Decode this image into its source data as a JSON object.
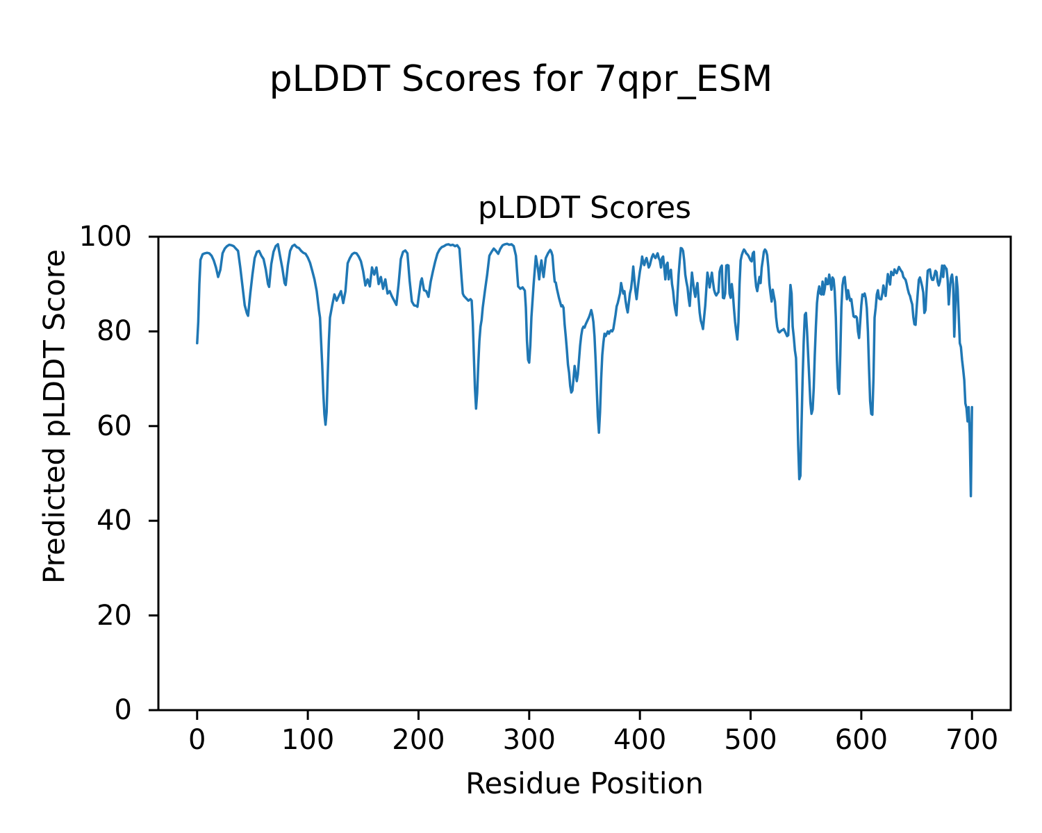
{
  "figure": {
    "suptitle": "pLDDT Scores for 7qpr_ESM"
  },
  "chart_data": {
    "type": "line",
    "title": "pLDDT Scores",
    "xlabel": "Residue Position",
    "ylabel": "Predicted pLDDT Score",
    "xlim": [
      -35,
      735
    ],
    "ylim": [
      0,
      100
    ],
    "xticks": [
      0,
      100,
      200,
      300,
      400,
      500,
      600,
      700
    ],
    "yticks": [
      0,
      20,
      40,
      60,
      80,
      100
    ],
    "grid": false,
    "legend": "none",
    "line_color": "#1f77b4",
    "line_width": 3.5,
    "axis_color": "#000000",
    "series": [
      {
        "name": "pLDDT",
        "x": [
          0,
          1,
          2,
          3,
          5,
          7,
          9,
          11,
          13,
          15,
          17,
          19,
          21,
          23,
          25,
          27,
          29,
          31,
          33,
          35,
          37,
          39,
          41,
          43,
          45,
          46,
          48,
          50,
          52,
          54,
          56,
          58,
          60,
          62,
          64,
          65,
          67,
          69,
          71,
          73,
          75,
          77,
          79,
          80,
          82,
          84,
          86,
          88,
          90,
          92,
          94,
          96,
          98,
          100,
          102,
          104,
          106,
          108,
          110,
          111,
          112,
          113,
          114,
          115,
          116,
          117,
          118,
          119,
          120,
          122,
          124,
          126,
          128,
          130,
          132,
          134,
          136,
          138,
          140,
          142,
          144,
          146,
          148,
          150,
          152,
          154,
          156,
          158,
          160,
          162,
          164,
          166,
          168,
          170,
          172,
          174,
          176,
          178,
          180,
          182,
          184,
          186,
          188,
          190,
          192,
          194,
          196,
          198,
          199,
          200,
          202,
          203,
          205,
          207,
          209,
          211,
          213,
          215,
          217,
          219,
          221,
          223,
          225,
          227,
          229,
          231,
          233,
          235,
          237,
          239,
          240,
          241,
          243,
          245,
          247,
          248,
          249,
          250,
          251,
          252,
          253,
          254,
          255,
          256,
          257,
          258,
          260,
          262,
          264,
          266,
          268,
          270,
          272,
          274,
          276,
          278,
          280,
          282,
          284,
          286,
          288,
          290,
          292,
          294,
          296,
          297,
          298,
          299,
          300,
          301,
          302,
          304,
          306,
          308,
          309,
          310,
          311,
          312,
          313,
          314,
          315,
          317,
          319,
          320,
          321,
          322,
          323,
          324,
          325,
          327,
          329,
          330,
          331,
          332,
          333,
          334,
          335,
          336,
          337,
          338,
          339,
          340,
          341,
          342,
          343,
          344,
          345,
          346,
          347,
          348,
          349,
          350,
          351,
          352,
          354,
          355,
          356,
          357,
          358,
          359,
          360,
          361,
          362,
          363,
          364,
          365,
          366,
          367,
          368,
          369,
          370,
          371,
          372,
          373,
          374,
          375,
          376,
          377,
          378,
          379,
          380,
          381,
          382,
          383,
          384,
          385,
          386,
          387,
          388,
          389,
          390,
          391,
          392,
          393,
          394,
          395,
          396,
          397,
          398,
          399,
          400,
          401,
          402,
          403,
          404,
          405,
          406,
          407,
          408,
          409,
          410,
          411,
          412,
          413,
          414,
          415,
          416,
          417,
          418,
          419,
          420,
          421,
          422,
          423,
          424,
          425,
          426,
          427,
          428,
          429,
          430,
          431,
          432,
          433,
          434,
          435,
          436,
          437,
          438,
          439,
          440,
          441,
          442,
          443,
          444,
          445,
          446,
          447,
          448,
          449,
          450,
          451,
          452,
          453,
          454,
          455,
          456,
          457,
          458,
          459,
          460,
          461,
          462,
          463,
          464,
          465,
          466,
          467,
          468,
          469,
          470,
          471,
          472,
          473,
          474,
          475,
          476,
          477,
          478,
          479,
          480,
          481,
          482,
          483,
          484,
          485,
          486,
          487,
          488,
          489,
          490,
          491,
          492,
          493,
          494,
          495,
          496,
          497,
          498,
          499,
          500,
          501,
          502,
          503,
          504,
          505,
          506,
          507,
          508,
          509,
          510,
          511,
          512,
          513,
          514,
          515,
          516,
          517,
          518,
          519,
          520,
          521,
          522,
          523,
          524,
          525,
          526,
          527,
          528,
          529,
          530,
          531,
          532,
          533,
          534,
          535,
          536,
          537,
          538,
          539,
          540,
          541,
          542,
          543,
          544,
          545,
          546,
          547,
          548,
          549,
          550,
          551,
          552,
          553,
          554,
          555,
          556,
          557,
          558,
          559,
          560,
          561,
          562,
          563,
          564,
          565,
          566,
          567,
          568,
          569,
          570,
          571,
          572,
          573,
          574,
          575,
          576,
          577,
          578,
          579,
          580,
          581,
          582,
          583,
          584,
          585,
          586,
          587,
          588,
          589,
          590,
          591,
          592,
          593,
          594,
          595,
          596,
          597,
          598,
          599,
          600,
          601,
          602,
          603,
          604,
          605,
          606,
          607,
          608,
          609,
          610,
          611,
          612,
          613,
          614,
          615,
          616,
          617,
          618,
          619,
          620,
          621,
          622,
          623,
          624,
          625,
          626,
          627,
          628,
          629,
          630,
          631,
          632,
          633,
          634,
          635,
          636,
          637,
          638,
          639,
          640,
          641,
          642,
          643,
          644,
          645,
          646,
          647,
          648,
          649,
          650,
          651,
          652,
          653,
          654,
          655,
          656,
          657,
          658,
          659,
          660,
          661,
          662,
          663,
          664,
          665,
          666,
          667,
          668,
          669,
          670,
          671,
          672,
          673,
          674,
          675,
          676,
          677,
          678,
          679,
          680,
          681,
          682,
          683,
          684,
          685,
          686,
          687,
          688,
          689,
          690,
          691,
          692,
          693,
          694,
          695,
          696,
          697,
          698,
          699,
          700
        ],
        "y": [
          77.5,
          82,
          90,
          95.1,
          96.3,
          96.5,
          96.6,
          96.5,
          96,
          95,
          93.5,
          91.5,
          93,
          96.5,
          97.5,
          98,
          98.3,
          98.2,
          98,
          97.5,
          97,
          93.5,
          89.5,
          85.5,
          83.8,
          83.3,
          88,
          92,
          95.5,
          96.8,
          97,
          96,
          95.3,
          93.1,
          90,
          89.4,
          94.2,
          96.8,
          98,
          98.4,
          95.8,
          93.3,
          90.2,
          89.8,
          94,
          97,
          98,
          98.3,
          97.8,
          97.6,
          97,
          96.6,
          96.4,
          95.6,
          94.5,
          92.8,
          91,
          88.5,
          84.5,
          82.9,
          78,
          73,
          67,
          62.5,
          60.3,
          63,
          71,
          78,
          82.9,
          85.5,
          87.8,
          86.5,
          87.5,
          88.5,
          86,
          88.5,
          94.4,
          95.5,
          96.3,
          96.6,
          96.5,
          95.8,
          94.8,
          92.7,
          89.7,
          91,
          89.5,
          93.5,
          92,
          93.5,
          90,
          91.5,
          89,
          91,
          88,
          88.5,
          87.4,
          86.5,
          85.6,
          90,
          95.3,
          96.8,
          97.1,
          96.5,
          90.7,
          86.3,
          85.5,
          85.4,
          85.2,
          87,
          90.5,
          91.2,
          88.7,
          88.5,
          87.3,
          90.5,
          92.7,
          94.7,
          96.4,
          97.3,
          97.8,
          98,
          98.3,
          98.4,
          98.2,
          98.3,
          98,
          98.2,
          97.5,
          91,
          88,
          87.5,
          87,
          86.5,
          86.8,
          86.5,
          82,
          75,
          68,
          63.7,
          67,
          73,
          78,
          81,
          82.4,
          85,
          88.6,
          92,
          96,
          96.8,
          97.5,
          97,
          96.4,
          97.5,
          98.2,
          98.4,
          98.5,
          98.3,
          98.4,
          98,
          96,
          89.5,
          89,
          89.3,
          88.6,
          85,
          78,
          74,
          73.4,
          77,
          83,
          90,
          95.9,
          93,
          91,
          93.5,
          95,
          93,
          91.5,
          93.5,
          95.5,
          96.5,
          97.2,
          96.8,
          96,
          93,
          90.5,
          90.3,
          89,
          87,
          85.3,
          85.5,
          85,
          81.5,
          79,
          76.2,
          73,
          71.3,
          68.5,
          67.1,
          67.5,
          70,
          72.7,
          71,
          69.5,
          71,
          74,
          77,
          79.1,
          80.5,
          81,
          80.8,
          81.5,
          82,
          83,
          83.7,
          84.5,
          83.5,
          82,
          79,
          74,
          68,
          62,
          58.6,
          63,
          70,
          75,
          77.6,
          79.5,
          79,
          79.5,
          80,
          79.5,
          80,
          80.2,
          80,
          80.5,
          82,
          83.5,
          85.3,
          86,
          87,
          88,
          90.2,
          89,
          88,
          88.5,
          86.5,
          85,
          84,
          86,
          88,
          89,
          91,
          93.7,
          91,
          88.5,
          86.8,
          89,
          91,
          92.7,
          94,
          95.8,
          94.5,
          94,
          95,
          95.5,
          94.5,
          93.5,
          94,
          95,
          95.8,
          96.3,
          95.8,
          95.5,
          96,
          96.5,
          95.5,
          95,
          93.5,
          95.5,
          95.8,
          93.5,
          91,
          94,
          94.5,
          91,
          92.5,
          93,
          90,
          88.5,
          86,
          84.5,
          83.4,
          88,
          92,
          95,
          97.6,
          97.5,
          97,
          95,
          92,
          90.5,
          89.3,
          87,
          85.4,
          89,
          92.4,
          90.5,
          88.5,
          87.3,
          89,
          90.2,
          87,
          84,
          82.3,
          81.5,
          80.5,
          83,
          85.4,
          89,
          92.4,
          91,
          89.3,
          91,
          92.4,
          90.5,
          88.8,
          88,
          87.6,
          88,
          88.3,
          92.6,
          93.5,
          93.9,
          87.1,
          87,
          88,
          93.9,
          94,
          93.9,
          88,
          87.1,
          90,
          88,
          84.8,
          82,
          80,
          78.3,
          82,
          90,
          95,
          96.1,
          96.8,
          97.3,
          97,
          96.5,
          96.3,
          96,
          95.5,
          95,
          94.8,
          96.5,
          96.8,
          92,
          89.5,
          88.5,
          90,
          91.5,
          90.2,
          93.5,
          95.1,
          96.8,
          97.3,
          97,
          96.1,
          93.6,
          90,
          88,
          86.3,
          88.8,
          87.5,
          86.3,
          83,
          81,
          80,
          79.8,
          80,
          80.2,
          80.3,
          80.5,
          80,
          79.5,
          79,
          79.2,
          85,
          89.8,
          88,
          81,
          78.8,
          76,
          74.4,
          66,
          56,
          48.8,
          49.5,
          60,
          70,
          78,
          83.5,
          83.9,
          80,
          75,
          70,
          65,
          62.6,
          63.5,
          68,
          75,
          81,
          86,
          88.3,
          89.5,
          88,
          87.8,
          90.5,
          87.8,
          89,
          91.2,
          90,
          90,
          92,
          90.5,
          88.8,
          91.4,
          91,
          88.5,
          83,
          74,
          68,
          66.8,
          75,
          85,
          89.7,
          91.2,
          91.5,
          89,
          86.8,
          88.7,
          87.5,
          86.5,
          86.8,
          85,
          83.2,
          83,
          83.2,
          82.9,
          80,
          78.6,
          82,
          85.5,
          87.8,
          87.5,
          88,
          87,
          84.9,
          80,
          72.2,
          65.3,
          62.6,
          62.4,
          70,
          82.9,
          85,
          87.8,
          88.7,
          87,
          86.8,
          86.8,
          88,
          89.7,
          88.5,
          87.5,
          89.9,
          92.1,
          91,
          89.9,
          92.6,
          92,
          91.9,
          93.1,
          92.5,
          92.3,
          93,
          93.6,
          93.2,
          92.8,
          92.5,
          91.5,
          91.2,
          90.9,
          90,
          88.9,
          88,
          87.5,
          86.5,
          85.7,
          83,
          81.5,
          81.4,
          85,
          88,
          90.9,
          91.4,
          90.5,
          89.5,
          88.2,
          83.9,
          84.5,
          89,
          92.8,
          93,
          93.1,
          91.5,
          90.9,
          90.9,
          91.8,
          92.8,
          92.5,
          90.5,
          89.7,
          90.5,
          92,
          93.9,
          91.5,
          93.9,
          93.5,
          93.2,
          90.9,
          85.7,
          89,
          91.3,
          92,
          90,
          78.9,
          85,
          91.5,
          89,
          83.4,
          77.5,
          76.7,
          74,
          72,
          69.7,
          64.8,
          63.8,
          61,
          64,
          58.5,
          45.2,
          64
        ]
      }
    ]
  }
}
